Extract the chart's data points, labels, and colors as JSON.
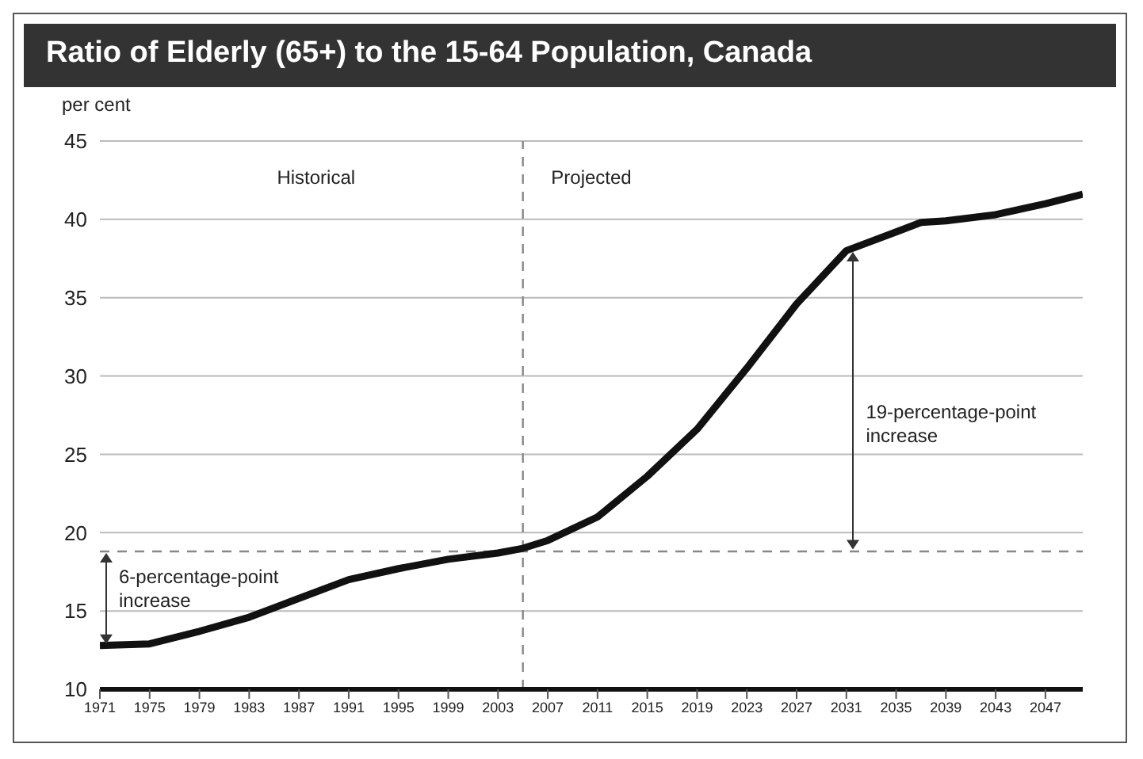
{
  "chart_data": {
    "type": "line",
    "title": "Ratio of Elderly (65+) to the 15-64 Population, Canada",
    "ylabel": "per cent",
    "x": [
      1971,
      1975,
      1979,
      1983,
      1987,
      1991,
      1995,
      1999,
      2003,
      2005,
      2007,
      2011,
      2015,
      2019,
      2023,
      2027,
      2031,
      2035,
      2037,
      2039,
      2043,
      2047,
      2050
    ],
    "series": [
      {
        "color": "#111111",
        "values": [
          12.8,
          12.9,
          13.7,
          14.6,
          15.8,
          17.0,
          17.7,
          18.3,
          18.7,
          19.0,
          19.5,
          21.0,
          23.6,
          26.6,
          30.5,
          34.6,
          38.0,
          39.2,
          39.8,
          39.9,
          40.3,
          41.0,
          41.6
        ]
      }
    ],
    "xlim": [
      1971,
      2050
    ],
    "xticks": [
      1971,
      1975,
      1979,
      1983,
      1987,
      1991,
      1995,
      1999,
      2003,
      2007,
      2011,
      2015,
      2019,
      2023,
      2027,
      2031,
      2035,
      2039,
      2043,
      2047
    ],
    "ylim": [
      10,
      45
    ],
    "yticks": [
      10,
      15,
      20,
      25,
      30,
      35,
      40,
      45
    ],
    "grid": "y",
    "marker": "none",
    "line_style": "solid",
    "ref_lines": [
      {
        "axis": "x",
        "value": 2005,
        "color": "#888888",
        "line_style": "dashed"
      },
      {
        "axis": "y",
        "value": 18.8,
        "color": "#888888",
        "line_style": "dashed"
      }
    ],
    "annotations": [
      "Historical",
      "Projected",
      {
        "text": "6-percentage-point increase",
        "x": 1971,
        "y": 12.8
      },
      "19-percentage-point increase"
    ]
  }
}
